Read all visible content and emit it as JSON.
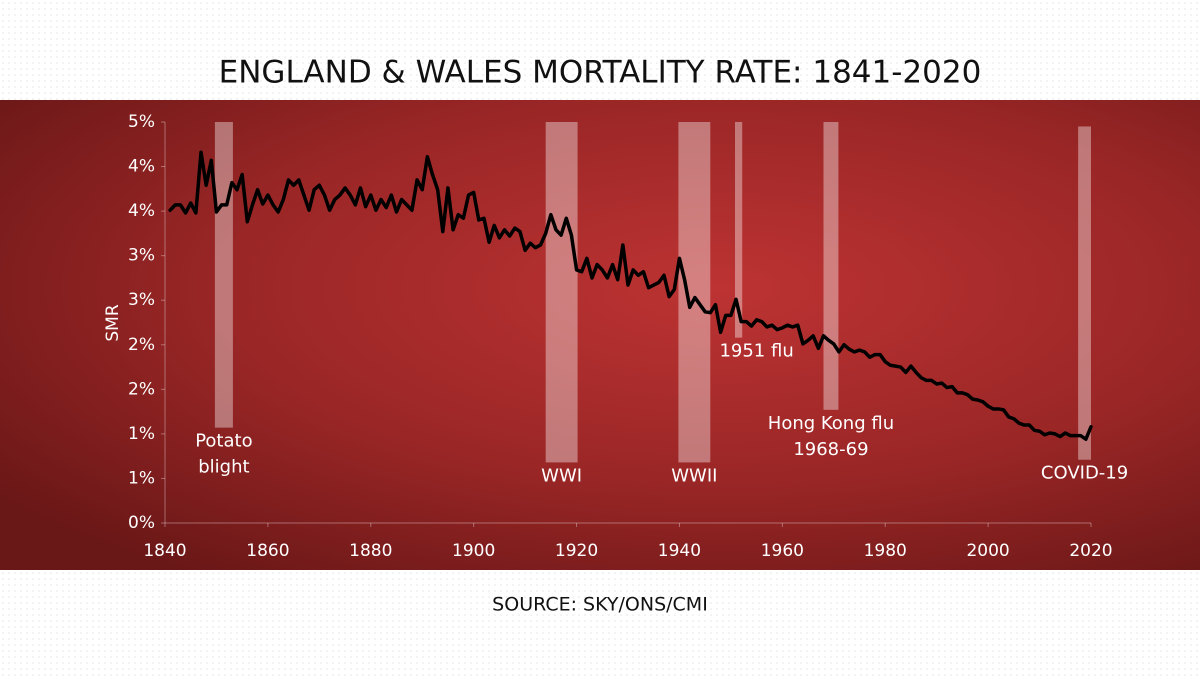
{
  "chart_data": {
    "type": "line",
    "title": "ENGLAND & WALES MORTALITY RATE: 1841-2020",
    "source": "SOURCE: SKY/ONS/CMI",
    "y_label": "SMR",
    "color": "#000000",
    "grid": false,
    "xlim": [
      1840,
      2020
    ],
    "xticks": [
      1840,
      1860,
      1880,
      1900,
      1920,
      1940,
      1960,
      1980,
      2000,
      2020
    ],
    "ylim": [
      0,
      4.5
    ],
    "yticks": [
      {
        "value": 0,
        "label": "0%"
      },
      {
        "value": 0.5,
        "label": "1%"
      },
      {
        "value": 1,
        "label": "1%"
      },
      {
        "value": 1.5,
        "label": "2%"
      },
      {
        "value": 2,
        "label": "2%"
      },
      {
        "value": 2.5,
        "label": "3%"
      },
      {
        "value": 3,
        "label": "3%"
      },
      {
        "value": 3.5,
        "label": "4%"
      },
      {
        "value": 4,
        "label": "4%"
      },
      {
        "value": 4.5,
        "label": "5%"
      }
    ],
    "x": [
      1841,
      1842,
      1843,
      1844,
      1845,
      1846,
      1847,
      1848,
      1849,
      1850,
      1851,
      1852,
      1853,
      1854,
      1855,
      1856,
      1857,
      1858,
      1859,
      1860,
      1861,
      1862,
      1863,
      1864,
      1865,
      1866,
      1867,
      1868,
      1869,
      1870,
      1871,
      1872,
      1873,
      1874,
      1875,
      1876,
      1877,
      1878,
      1879,
      1880,
      1881,
      1882,
      1883,
      1884,
      1885,
      1886,
      1887,
      1888,
      1889,
      1890,
      1891,
      1892,
      1893,
      1894,
      1895,
      1896,
      1897,
      1898,
      1899,
      1900,
      1901,
      1902,
      1903,
      1904,
      1905,
      1906,
      1907,
      1908,
      1909,
      1910,
      1911,
      1912,
      1913,
      1914,
      1915,
      1916,
      1917,
      1918,
      1919,
      1920,
      1921,
      1922,
      1923,
      1924,
      1925,
      1926,
      1927,
      1928,
      1929,
      1930,
      1931,
      1932,
      1933,
      1934,
      1935,
      1936,
      1937,
      1938,
      1939,
      1940,
      1941,
      1942,
      1943,
      1944,
      1945,
      1946,
      1947,
      1948,
      1949,
      1950,
      1951,
      1952,
      1953,
      1954,
      1955,
      1956,
      1957,
      1958,
      1959,
      1960,
      1961,
      1962,
      1963,
      1964,
      1965,
      1966,
      1967,
      1968,
      1969,
      1970,
      1971,
      1972,
      1973,
      1974,
      1975,
      1976,
      1977,
      1978,
      1979,
      1980,
      1981,
      1982,
      1983,
      1984,
      1985,
      1986,
      1987,
      1988,
      1989,
      1990,
      1991,
      1992,
      1993,
      1994,
      1995,
      1996,
      1997,
      1998,
      1999,
      2000,
      2001,
      2002,
      2003,
      2004,
      2005,
      2006,
      2007,
      2008,
      2009,
      2010,
      2011,
      2012,
      2013,
      2014,
      2015,
      2016,
      2017,
      2018,
      2019,
      2020
    ],
    "values": [
      3.51,
      3.57,
      3.57,
      3.48,
      3.59,
      3.48,
      4.16,
      3.79,
      4.07,
      3.49,
      3.57,
      3.57,
      3.82,
      3.74,
      3.91,
      3.38,
      3.57,
      3.74,
      3.58,
      3.68,
      3.57,
      3.49,
      3.63,
      3.85,
      3.79,
      3.85,
      3.68,
      3.51,
      3.74,
      3.79,
      3.68,
      3.51,
      3.63,
      3.68,
      3.76,
      3.68,
      3.57,
      3.76,
      3.55,
      3.68,
      3.51,
      3.63,
      3.54,
      3.68,
      3.49,
      3.63,
      3.57,
      3.51,
      3.85,
      3.74,
      4.11,
      3.91,
      3.74,
      3.27,
      3.76,
      3.29,
      3.46,
      3.42,
      3.68,
      3.71,
      3.4,
      3.42,
      3.15,
      3.34,
      3.2,
      3.29,
      3.22,
      3.31,
      3.27,
      3.06,
      3.14,
      3.09,
      3.12,
      3.25,
      3.46,
      3.29,
      3.23,
      3.42,
      3.23,
      2.84,
      2.82,
      2.97,
      2.75,
      2.9,
      2.84,
      2.75,
      2.9,
      2.73,
      3.12,
      2.67,
      2.84,
      2.78,
      2.82,
      2.64,
      2.67,
      2.7,
      2.78,
      2.54,
      2.62,
      2.97,
      2.73,
      2.42,
      2.53,
      2.45,
      2.37,
      2.36,
      2.45,
      2.14,
      2.33,
      2.33,
      2.51,
      2.26,
      2.26,
      2.21,
      2.28,
      2.26,
      2.2,
      2.22,
      2.17,
      2.19,
      2.22,
      2.2,
      2.22,
      2.01,
      2.05,
      2.1,
      1.96,
      2.1,
      2.05,
      2.01,
      1.92,
      2.0,
      1.95,
      1.92,
      1.94,
      1.92,
      1.86,
      1.89,
      1.89,
      1.81,
      1.77,
      1.76,
      1.75,
      1.69,
      1.76,
      1.69,
      1.63,
      1.6,
      1.6,
      1.56,
      1.57,
      1.52,
      1.53,
      1.46,
      1.46,
      1.44,
      1.39,
      1.38,
      1.36,
      1.31,
      1.28,
      1.28,
      1.27,
      1.19,
      1.17,
      1.12,
      1.1,
      1.1,
      1.04,
      1.03,
      0.99,
      1.01,
      1.0,
      0.97,
      1.01,
      0.98,
      0.98,
      0.98,
      0.94,
      1.08
    ],
    "annotations": [
      {
        "label": [
          "Potato",
          "blight"
        ],
        "x": [
          1849.7,
          1853.2
        ],
        "y": [
          1.07,
          4.5
        ]
      },
      {
        "label": [
          "WWI"
        ],
        "x": [
          1914,
          1920.2
        ],
        "y": [
          0.68,
          4.5
        ]
      },
      {
        "label": [
          "WWII"
        ],
        "x": [
          1939.8,
          1946
        ],
        "y": [
          0.68,
          4.5
        ]
      },
      {
        "label": [
          "1951 flu"
        ],
        "x": [
          1950.8,
          1952.2
        ],
        "y": [
          2.08,
          4.5
        ]
      },
      {
        "label": [
          "Hong Kong flu",
          "1968-69"
        ],
        "x": [
          1968,
          1970.9
        ],
        "y": [
          1.27,
          4.5
        ]
      },
      {
        "label": [
          "COVID-19"
        ],
        "x": [
          2017.5,
          2020
        ],
        "y": [
          0.71,
          4.45
        ]
      }
    ]
  }
}
